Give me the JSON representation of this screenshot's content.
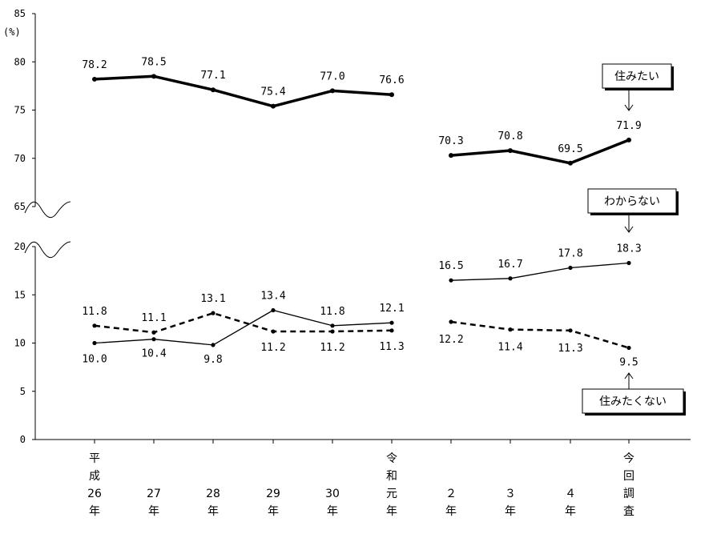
{
  "chart_data": {
    "type": "line",
    "ylabel": "(%)",
    "broken_axis": true,
    "y_ticks_upper": [
      85,
      80,
      75,
      70,
      65
    ],
    "y_ticks_lower": [
      20,
      15,
      10,
      5,
      0
    ],
    "ylim_upper": [
      65,
      85
    ],
    "ylim_lower": [
      0,
      20
    ],
    "categories": [
      [
        "平",
        "成",
        "26",
        "年"
      ],
      [
        "27",
        "年"
      ],
      [
        "28",
        "年"
      ],
      [
        "29",
        "年"
      ],
      [
        "30",
        "年"
      ],
      [
        "令",
        "和",
        "元",
        "年"
      ],
      [
        "２",
        "年"
      ],
      [
        "３",
        "年"
      ],
      [
        "４",
        "年"
      ],
      [
        "今",
        "回",
        "調",
        "査"
      ]
    ],
    "series": [
      {
        "name": "住みたい",
        "style": "thick",
        "panel": "upper",
        "values": [
          78.2,
          78.5,
          77.1,
          75.4,
          77.0,
          76.6,
          70.3,
          70.8,
          69.5,
          71.9
        ],
        "labels": [
          "78.2",
          "78.5",
          "77.1",
          "75.4",
          "77.0",
          "76.6",
          "70.3",
          "70.8",
          "69.5",
          "71.9"
        ]
      },
      {
        "name": "わからない",
        "style": "thin",
        "panel": "lower",
        "values": [
          10.0,
          10.4,
          9.8,
          13.4,
          11.8,
          12.1,
          16.5,
          16.7,
          17.8,
          18.3
        ],
        "labels": [
          "10.0",
          "10.4",
          "9.8",
          "13.4",
          "11.8",
          "12.1",
          "16.5",
          "16.7",
          "17.8",
          "18.3"
        ]
      },
      {
        "name": "住みたくない",
        "style": "dashed",
        "panel": "lower",
        "values": [
          11.8,
          11.1,
          13.1,
          11.2,
          11.2,
          11.3,
          12.2,
          11.4,
          11.3,
          9.5
        ],
        "labels": [
          "11.8",
          "11.1",
          "13.1",
          "11.2",
          "11.2",
          "11.3",
          "12.2",
          "11.4",
          "11.3",
          "9.5"
        ]
      }
    ]
  }
}
